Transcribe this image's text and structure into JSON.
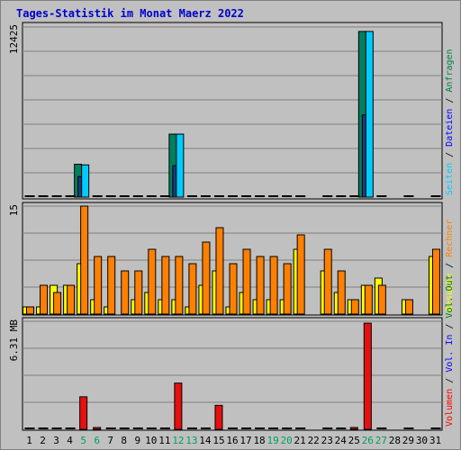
{
  "chart_data": {
    "title": "Tages-Statistik im Monat Maerz 2022",
    "type": "bar",
    "categories": [
      "1",
      "2",
      "3",
      "4",
      "5",
      "6",
      "7",
      "8",
      "9",
      "10",
      "11",
      "12",
      "13",
      "14",
      "15",
      "16",
      "17",
      "18",
      "19",
      "20",
      "21",
      "22",
      "23",
      "24",
      "25",
      "26",
      "27",
      "28",
      "29",
      "30",
      "31"
    ],
    "weekend_days": [
      "5",
      "6",
      "12",
      "13",
      "19",
      "20",
      "26",
      "27"
    ],
    "panels": [
      {
        "id": "hits",
        "ymax": 12425,
        "ymax_label": "12425",
        "side_label_parts": [
          {
            "text": "Seiten",
            "color": "#00ccff"
          },
          {
            "text": " / ",
            "color": "#000000"
          },
          {
            "text": "Dateien",
            "color": "#0000ff"
          },
          {
            "text": " / ",
            "color": "#000000"
          },
          {
            "text": "Anfragen",
            "color": "#008040"
          }
        ],
        "series": [
          {
            "name": "Anfragen",
            "color": "#00805c",
            "values": [
              0,
              0,
              0,
              0,
              2400,
              0,
              0,
              0,
              0,
              0,
              0,
              4600,
              0,
              0,
              0,
              0,
              0,
              0,
              0,
              0,
              0,
              null,
              0,
              0,
              0,
              12100,
              0,
              null,
              0,
              null,
              0
            ]
          },
          {
            "name": "Dateien",
            "color": "#1c3c80",
            "values": [
              0,
              0,
              0,
              0,
              1500,
              0,
              0,
              0,
              0,
              0,
              0,
              2300,
              0,
              0,
              0,
              0,
              0,
              0,
              0,
              0,
              0,
              null,
              0,
              0,
              0,
              6000,
              0,
              null,
              0,
              null,
              0
            ]
          },
          {
            "name": "Seiten",
            "color": "#00ccff",
            "values": [
              0,
              0,
              0,
              0,
              2350,
              0,
              0,
              0,
              0,
              0,
              0,
              4600,
              0,
              0,
              0,
              0,
              0,
              0,
              0,
              0,
              0,
              null,
              0,
              0,
              0,
              12100,
              0,
              null,
              0,
              null,
              0
            ]
          }
        ]
      },
      {
        "id": "visits",
        "ymax": 15,
        "ymax_label": "15",
        "side_label_parts": [
          {
            "text": "Besuche",
            "color": "#ffff00"
          },
          {
            "text": " / ",
            "color": "#000000"
          },
          {
            "text": "Rechner",
            "color": "#ff8000"
          }
        ],
        "series": [
          {
            "name": "Besuche",
            "color": "#ffff00",
            "values": [
              1,
              1,
              4,
              4,
              7,
              2,
              1,
              0,
              2,
              3,
              2,
              2,
              1,
              4,
              6,
              1,
              3,
              2,
              2,
              2,
              9,
              null,
              6,
              3,
              2,
              4,
              5,
              null,
              2,
              null,
              8
            ]
          },
          {
            "name": "Rechner",
            "color": "#ff8000",
            "values": [
              1,
              4,
              3,
              4,
              15,
              8,
              8,
              6,
              6,
              9,
              8,
              8,
              7,
              10,
              12,
              7,
              9,
              8,
              8,
              7,
              11,
              null,
              9,
              6,
              2,
              4,
              4,
              null,
              2,
              null,
              9
            ]
          }
        ]
      },
      {
        "id": "volume",
        "ymax": 6.31,
        "ymax_label": "6.31 MB",
        "side_label_parts": [
          {
            "text": "Volumen",
            "color": "#ff0000"
          },
          {
            "text": " / ",
            "color": "#000000"
          },
          {
            "text": "Vol. In",
            "color": "#0000ff"
          },
          {
            "text": " / ",
            "color": "#000000"
          },
          {
            "text": "Vol. Out",
            "color": "#008000"
          }
        ],
        "series": [
          {
            "name": "Volumen",
            "color": "#e61010",
            "values": [
              0,
              0,
              0,
              0,
              1.9,
              0.1,
              0,
              0,
              0,
              0,
              0,
              2.7,
              0,
              0,
              1.4,
              0,
              0,
              0,
              0,
              0,
              0,
              null,
              0,
              0,
              0.1,
              6.2,
              0,
              null,
              0,
              null,
              0
            ]
          }
        ]
      }
    ]
  }
}
